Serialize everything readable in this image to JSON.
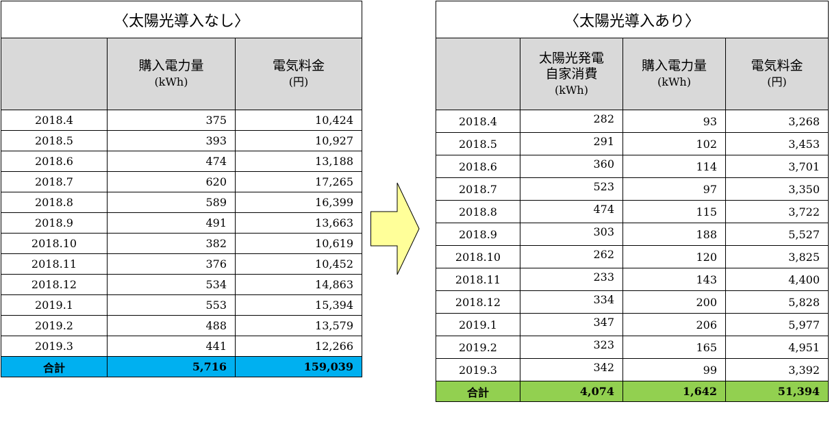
{
  "colors": {
    "header_bg": "#d9d9d9",
    "total_left": "#00b0f0",
    "total_right": "#92d050",
    "arrow_fill": "#ffff99"
  },
  "left": {
    "title": "〈太陽光導入なし〉",
    "headers": [
      {
        "label": "",
        "unit": ""
      },
      {
        "label": "購入電力量",
        "unit": "(kWh)"
      },
      {
        "label": "電気料金",
        "unit": "(円)"
      }
    ],
    "rows": [
      {
        "month": "2018.4",
        "purchased": "375",
        "cost": "10,424"
      },
      {
        "month": "2018.5",
        "purchased": "393",
        "cost": "10,927"
      },
      {
        "month": "2018.6",
        "purchased": "474",
        "cost": "13,188"
      },
      {
        "month": "2018.7",
        "purchased": "620",
        "cost": "17,265"
      },
      {
        "month": "2018.8",
        "purchased": "589",
        "cost": "16,399"
      },
      {
        "month": "2018.9",
        "purchased": "491",
        "cost": "13,663"
      },
      {
        "month": "2018.10",
        "purchased": "382",
        "cost": "10,619"
      },
      {
        "month": "2018.11",
        "purchased": "376",
        "cost": "10,452"
      },
      {
        "month": "2018.12",
        "purchased": "534",
        "cost": "14,863"
      },
      {
        "month": "2019.1",
        "purchased": "553",
        "cost": "15,394"
      },
      {
        "month": "2019.2",
        "purchased": "488",
        "cost": "13,579"
      },
      {
        "month": "2019.3",
        "purchased": "441",
        "cost": "12,266"
      }
    ],
    "total": {
      "label": "合計",
      "purchased": "5,716",
      "cost": "159,039"
    }
  },
  "right": {
    "title": "〈太陽光導入あり〉",
    "headers": [
      {
        "label": "",
        "unit": ""
      },
      {
        "label": "太陽光発電 自家消費",
        "unit": "(kWh)"
      },
      {
        "label": "購入電力量",
        "unit": "(kWh)"
      },
      {
        "label": "電気料金",
        "unit": "(円)"
      }
    ],
    "rows": [
      {
        "month": "2018.4",
        "solar": "282",
        "purchased": "93",
        "cost": "3,268"
      },
      {
        "month": "2018.5",
        "solar": "291",
        "purchased": "102",
        "cost": "3,453"
      },
      {
        "month": "2018.6",
        "solar": "360",
        "purchased": "114",
        "cost": "3,701"
      },
      {
        "month": "2018.7",
        "solar": "523",
        "purchased": "97",
        "cost": "3,350"
      },
      {
        "month": "2018.8",
        "solar": "474",
        "purchased": "115",
        "cost": "3,722"
      },
      {
        "month": "2018.9",
        "solar": "303",
        "purchased": "188",
        "cost": "5,527"
      },
      {
        "month": "2018.10",
        "solar": "262",
        "purchased": "120",
        "cost": "3,825"
      },
      {
        "month": "2018.11",
        "solar": "233",
        "purchased": "143",
        "cost": "4,400"
      },
      {
        "month": "2018.12",
        "solar": "334",
        "purchased": "200",
        "cost": "5,828"
      },
      {
        "month": "2019.1",
        "solar": "347",
        "purchased": "206",
        "cost": "5,977"
      },
      {
        "month": "2019.2",
        "solar": "323",
        "purchased": "165",
        "cost": "4,951"
      },
      {
        "month": "2019.3",
        "solar": "342",
        "purchased": "99",
        "cost": "3,392"
      }
    ],
    "total": {
      "label": "合計",
      "solar": "4,074",
      "purchased": "1,642",
      "cost": "51,394"
    }
  },
  "arrow": {
    "icon": "right-arrow-icon",
    "direction": "right"
  }
}
